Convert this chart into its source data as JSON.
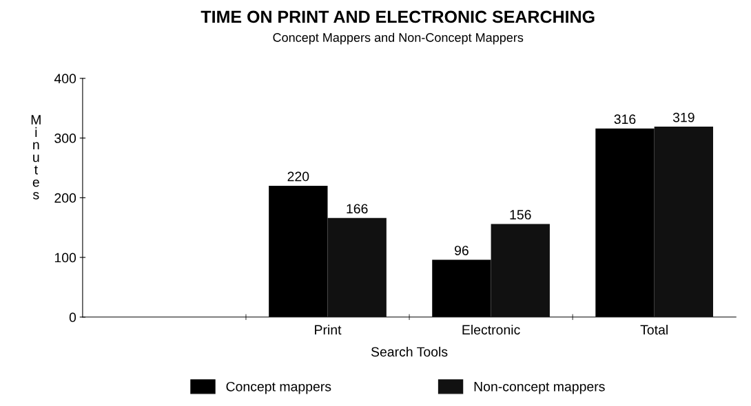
{
  "chart_data": {
    "type": "bar",
    "title": "TIME ON PRINT AND ELECTRONIC SEARCHING",
    "subtitle": "Concept Mappers and Non-Concept Mappers",
    "xlabel": "Search Tools",
    "ylabel": "Minutes",
    "categories": [
      null,
      "Print",
      "Electronic",
      "Total"
    ],
    "series": [
      {
        "name": "Concept mappers",
        "color": "#000000",
        "values": [
          null,
          220,
          96,
          316
        ]
      },
      {
        "name": "Non-concept mappers",
        "color": "#111111",
        "values": [
          null,
          166,
          156,
          319
        ]
      }
    ],
    "ylim": [
      0,
      400
    ],
    "yticks": [
      0,
      100,
      200,
      300,
      400
    ],
    "grid": false,
    "legend": "bottom",
    "data_labels": true
  }
}
